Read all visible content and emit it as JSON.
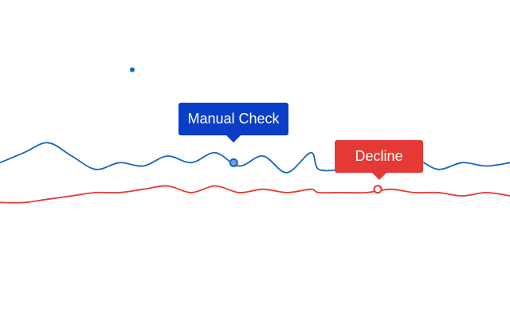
{
  "chart_data": {
    "type": "line",
    "title": "",
    "xlabel": "",
    "ylabel": "",
    "grid": false,
    "legend": "none",
    "ylim": [
      0,
      100
    ],
    "x": [
      0,
      0.75,
      1.5,
      2.25,
      3,
      3.75,
      4.5,
      5.25,
      6,
      6.75,
      7.5,
      8.25,
      9,
      9.75,
      10,
      10.75,
      11.5,
      12.25,
      13,
      13.75,
      14.5,
      15.25,
      16
    ],
    "series": [
      {
        "color": "#1565c0",
        "values": [
          51,
          54,
          57,
          53,
          49,
          51,
          50,
          53,
          51,
          54,
          50,
          53,
          48,
          54,
          49,
          49,
          50,
          49,
          52,
          49,
          51,
          50,
          51
        ],
        "highlight": {
          "x": 7.33,
          "y": 51
        }
      },
      {
        "color": "#e53935",
        "values": [
          39,
          39,
          40,
          41,
          42,
          42,
          43,
          44,
          42,
          44,
          42,
          43,
          42,
          43,
          42,
          42,
          42,
          43,
          42,
          42,
          41,
          42,
          41
        ],
        "highlight": {
          "x": 11.85,
          "y": 43
        }
      }
    ],
    "extra_points": [
      {
        "x": 4.15,
        "y": 79,
        "color": "#1565c0"
      }
    ],
    "annotations": [
      {
        "text": "Manual Check",
        "series": 0,
        "color": "#0a3ec6"
      },
      {
        "text": "Decline",
        "series": 1,
        "color": "#e53935"
      }
    ]
  }
}
